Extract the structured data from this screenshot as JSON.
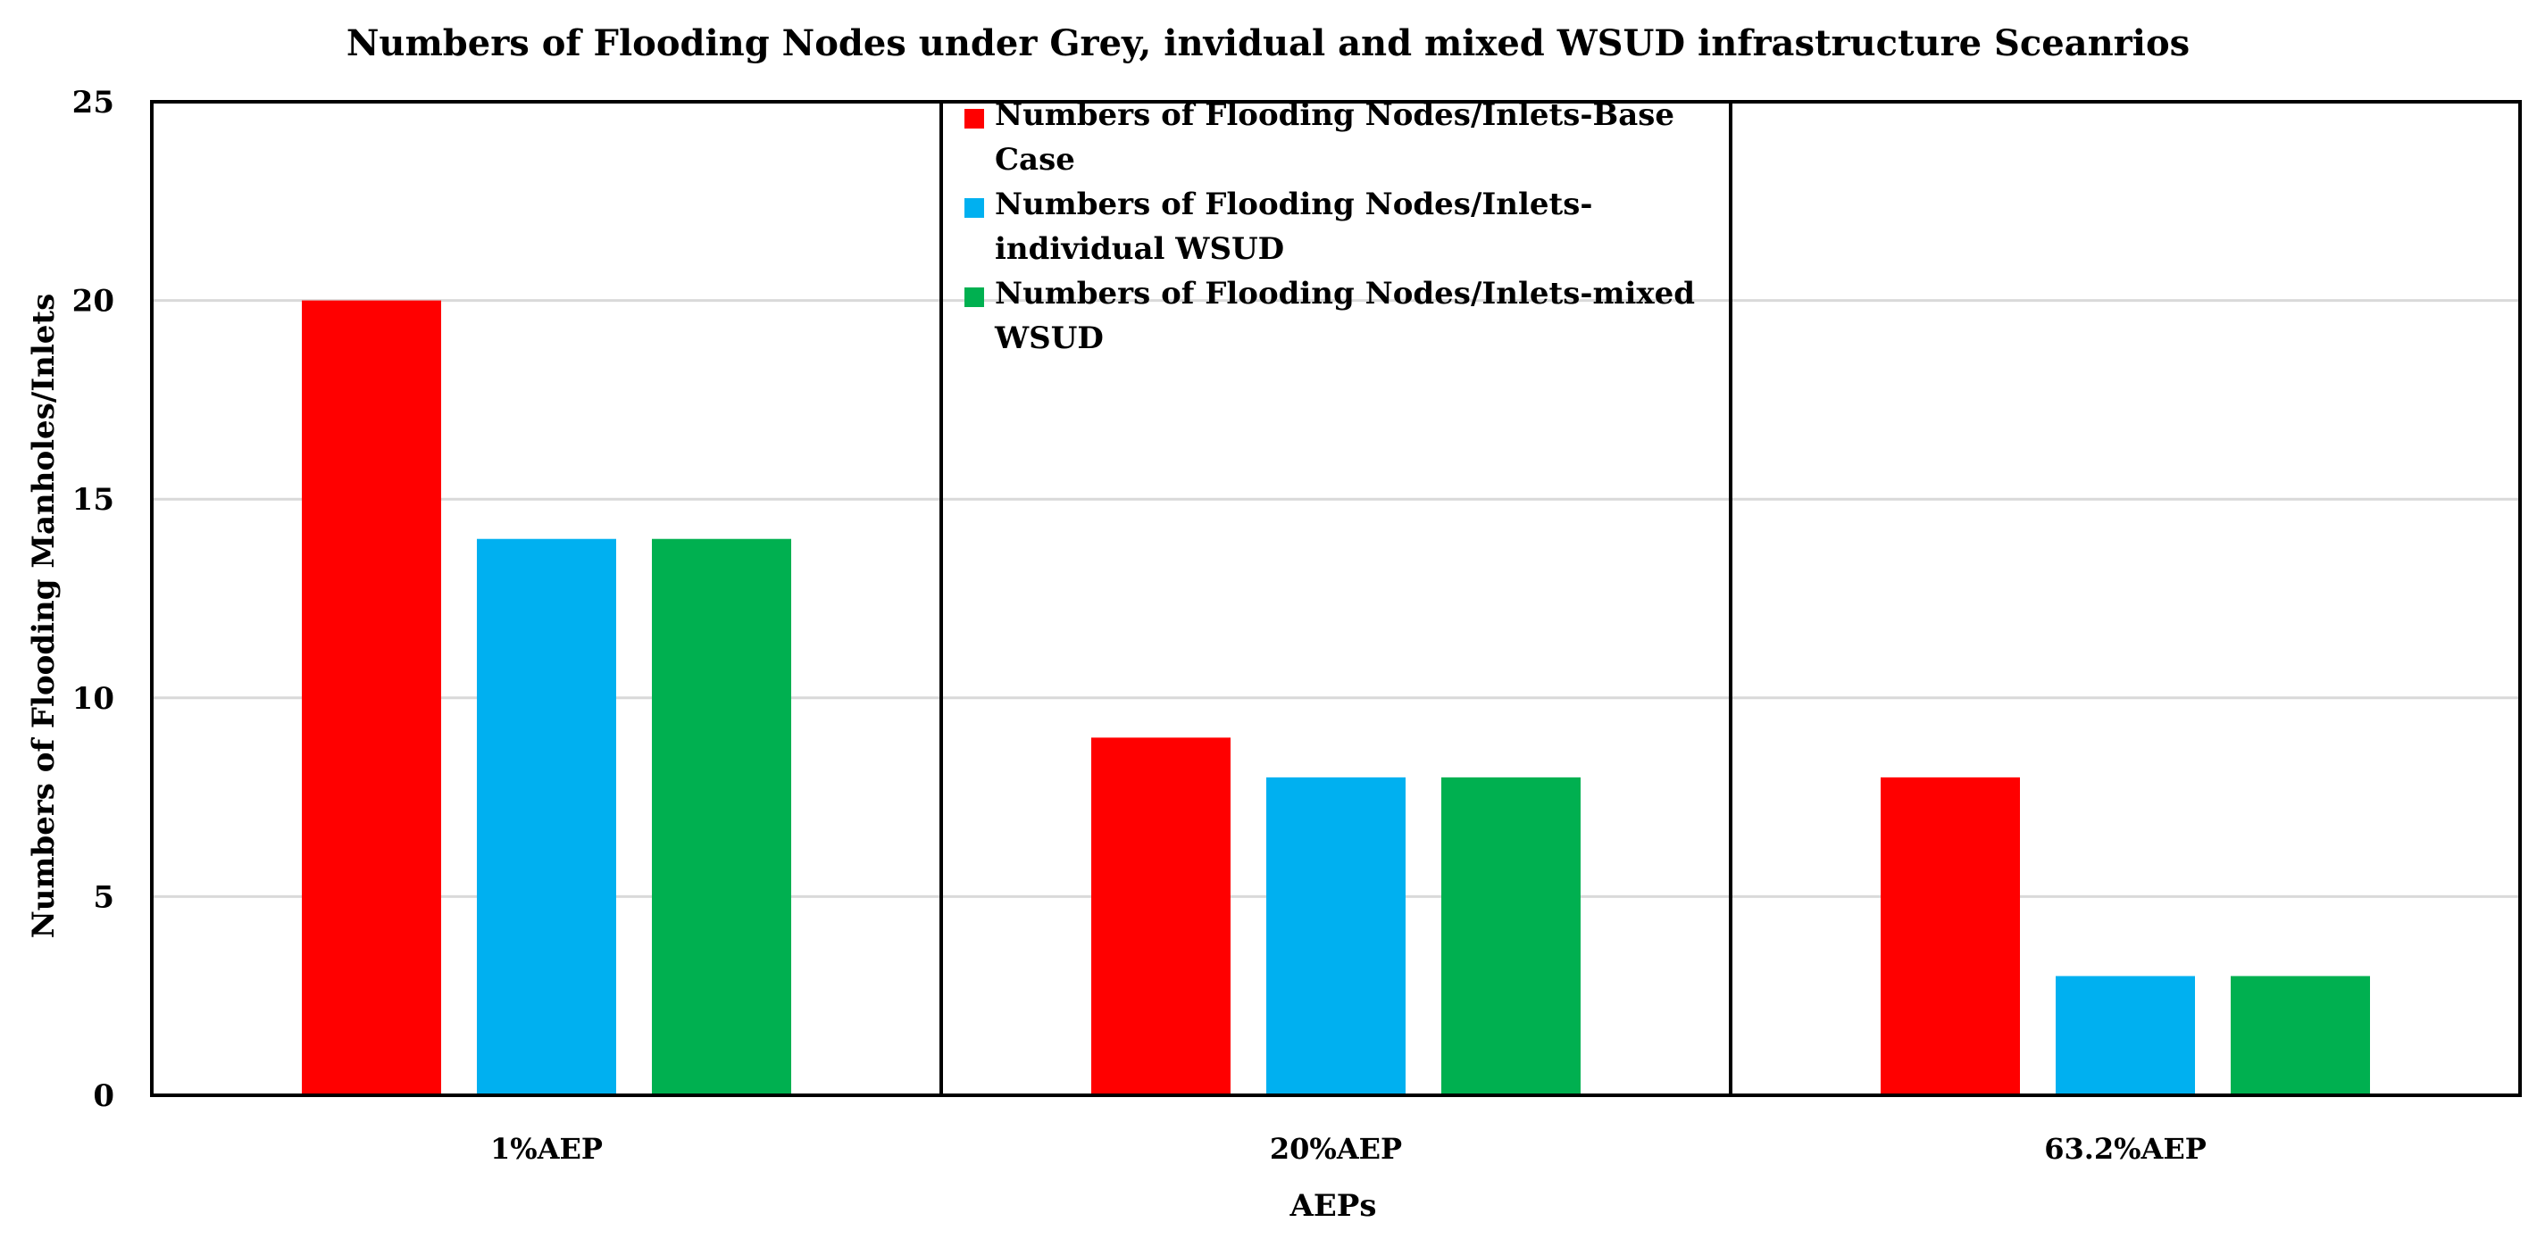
{
  "chart_data": {
    "type": "bar",
    "title": "Numbers of Flooding Nodes under Grey, invidual  and mixed WSUD infrastructure Sceanrios",
    "xlabel": "AEPs",
    "ylabel": "Numbers of Flooding Manholes/Inlets",
    "categories": [
      "1%AEP",
      "20%AEP",
      "63.2%AEP"
    ],
    "ylim": [
      0,
      25
    ],
    "yticks": [
      0,
      5,
      10,
      15,
      20,
      25
    ],
    "grid": true,
    "legend_position": "top-center",
    "series": [
      {
        "name": "Numbers of Flooding Nodes/Inlets-Base Case",
        "legend_lines": [
          "Numbers of Flooding Nodes/Inlets-Base",
          "Case"
        ],
        "color": "#ff0000",
        "values": [
          20,
          9,
          8
        ]
      },
      {
        "name": "Numbers of Flooding Nodes/Inlets-individual WSUD",
        "legend_lines": [
          "Numbers of Flooding Nodes/Inlets-",
          "individual WSUD"
        ],
        "color": "#00b0f0",
        "values": [
          14,
          8,
          3
        ]
      },
      {
        "name": "Numbers of Flooding Nodes/Inlets-mixed WSUD",
        "legend_lines": [
          "Numbers of Flooding Nodes/Inlets-mixed",
          "WSUD"
        ],
        "color": "#00b050",
        "values": [
          14,
          8,
          3
        ]
      }
    ]
  }
}
